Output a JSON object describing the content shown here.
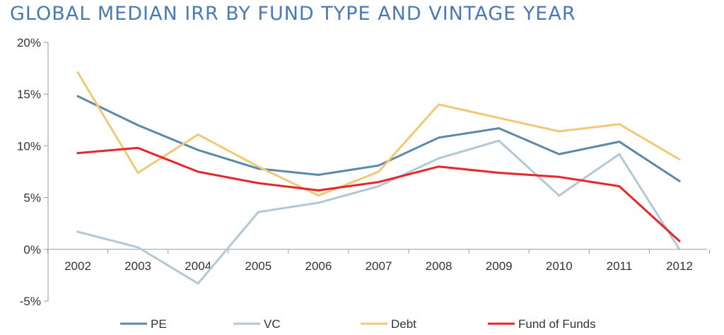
{
  "chart_data": {
    "type": "line",
    "title": "GLOBAL MEDIAN IRR BY FUND TYPE AND VINTAGE YEAR",
    "xlabel": "",
    "ylabel": "",
    "x": [
      "2002",
      "2003",
      "2004",
      "2005",
      "2006",
      "2007",
      "2008",
      "2009",
      "2010",
      "2011",
      "2012"
    ],
    "y_ticks": [
      "-5%",
      "0%",
      "5%",
      "10%",
      "15%",
      "20%"
    ],
    "ylim": [
      -5,
      20
    ],
    "y_unit": "%",
    "grid": false,
    "legend_position": "bottom",
    "series": [
      {
        "name": "PE",
        "color": "#5b8aa6",
        "values": [
          14.8,
          12.0,
          9.6,
          7.8,
          7.2,
          8.1,
          10.8,
          11.7,
          9.2,
          10.4,
          6.6
        ]
      },
      {
        "name": "VC",
        "color": "#b2c8d6",
        "values": [
          1.7,
          0.2,
          -3.3,
          3.6,
          4.5,
          6.1,
          8.8,
          10.5,
          5.2,
          9.2,
          0.0
        ]
      },
      {
        "name": "Debt",
        "color": "#f2c875",
        "values": [
          17.1,
          7.4,
          11.1,
          8.0,
          5.2,
          7.5,
          14.0,
          12.7,
          11.4,
          12.1,
          8.7
        ]
      },
      {
        "name": "Fund of Funds",
        "color": "#e8262a",
        "values": [
          9.3,
          9.8,
          7.5,
          6.4,
          5.7,
          6.5,
          8.0,
          7.4,
          7.0,
          6.1,
          0.8
        ]
      }
    ]
  }
}
